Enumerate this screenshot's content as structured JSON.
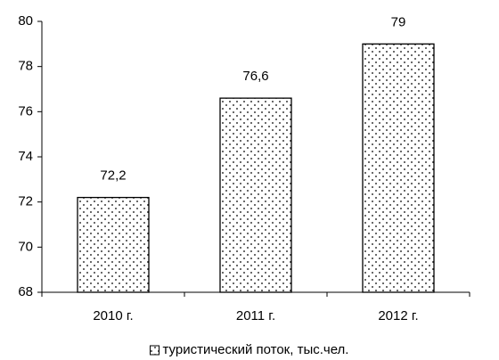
{
  "chart_data": {
    "type": "bar",
    "categories": [
      "2010 г.",
      "2011 г.",
      "2012 г."
    ],
    "series": [
      {
        "name": "туристический поток, тыс.чел.",
        "color": "#000000",
        "values": [
          72.2,
          76.6,
          79
        ],
        "value_labels": [
          "72,2",
          "76,6",
          "79"
        ]
      }
    ],
    "ylim": [
      68,
      80
    ],
    "yticks": [
      68,
      70,
      72,
      74,
      76,
      78,
      80
    ],
    "grid": false,
    "legend": "bottom"
  }
}
